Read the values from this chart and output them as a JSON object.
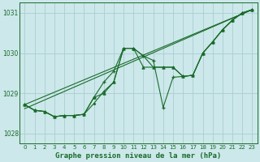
{
  "xlabel": "Graphe pression niveau de la mer (hPa)",
  "ylim": [
    1027.75,
    1031.25
  ],
  "xlim": [
    -0.5,
    23.5
  ],
  "yticks": [
    1028,
    1029,
    1030,
    1031
  ],
  "ytick_labels": [
    "1028",
    "1029",
    "1030",
    "1031"
  ],
  "xticks": [
    0,
    1,
    2,
    3,
    4,
    5,
    6,
    7,
    8,
    9,
    10,
    11,
    12,
    13,
    14,
    15,
    16,
    17,
    18,
    19,
    20,
    21,
    22,
    23
  ],
  "bg_color": "#cce8ea",
  "grid_color": "#aacdd2",
  "line_color": "#1a6b2a",
  "series_plus_x": [
    0,
    1,
    2,
    3,
    4,
    5,
    6,
    7,
    8,
    9,
    10,
    11,
    12,
    13,
    14,
    15,
    16,
    17,
    18,
    19,
    20,
    21,
    22,
    23
  ],
  "series_plus_y": [
    1028.72,
    1028.58,
    1028.55,
    1028.42,
    1028.45,
    1028.45,
    1028.48,
    1028.9,
    1029.28,
    1029.55,
    1030.12,
    1030.12,
    1029.93,
    1029.82,
    1028.65,
    1029.4,
    1029.42,
    1029.45,
    1030.0,
    1030.28,
    1030.58,
    1030.82,
    1031.0,
    1031.08
  ],
  "series_diamond_x": [
    0,
    1,
    2,
    3,
    4,
    5,
    6,
    7,
    8,
    9,
    10,
    11,
    12,
    13,
    14,
    15,
    16,
    17,
    18,
    19,
    20,
    21,
    22,
    23
  ],
  "series_diamond_y": [
    1028.72,
    1028.58,
    1028.55,
    1028.42,
    1028.45,
    1028.45,
    1028.48,
    1028.75,
    1029.05,
    1029.28,
    1030.12,
    1030.12,
    1029.93,
    1029.65,
    1029.65,
    1029.65,
    1029.42,
    1029.45,
    1030.0,
    1030.28,
    1030.58,
    1030.82,
    1031.0,
    1031.08
  ],
  "series_tri_x": [
    0,
    1,
    2,
    3,
    4,
    5,
    6,
    7,
    8,
    9,
    10,
    11,
    12,
    13,
    14,
    15,
    16,
    17,
    18,
    19,
    20,
    21,
    22,
    23
  ],
  "series_tri_y": [
    1028.72,
    1028.58,
    1028.55,
    1028.42,
    1028.45,
    1028.45,
    1028.48,
    1028.9,
    1029.0,
    1029.28,
    1030.12,
    1030.12,
    1029.65,
    1029.65,
    1029.65,
    1029.65,
    1029.42,
    1029.45,
    1030.0,
    1030.28,
    1030.58,
    1030.82,
    1031.0,
    1031.08
  ],
  "trend1_x": [
    0,
    23
  ],
  "trend1_y": [
    1028.72,
    1031.08
  ],
  "trend2_x": [
    0,
    23
  ],
  "trend2_y": [
    1028.62,
    1031.08
  ]
}
